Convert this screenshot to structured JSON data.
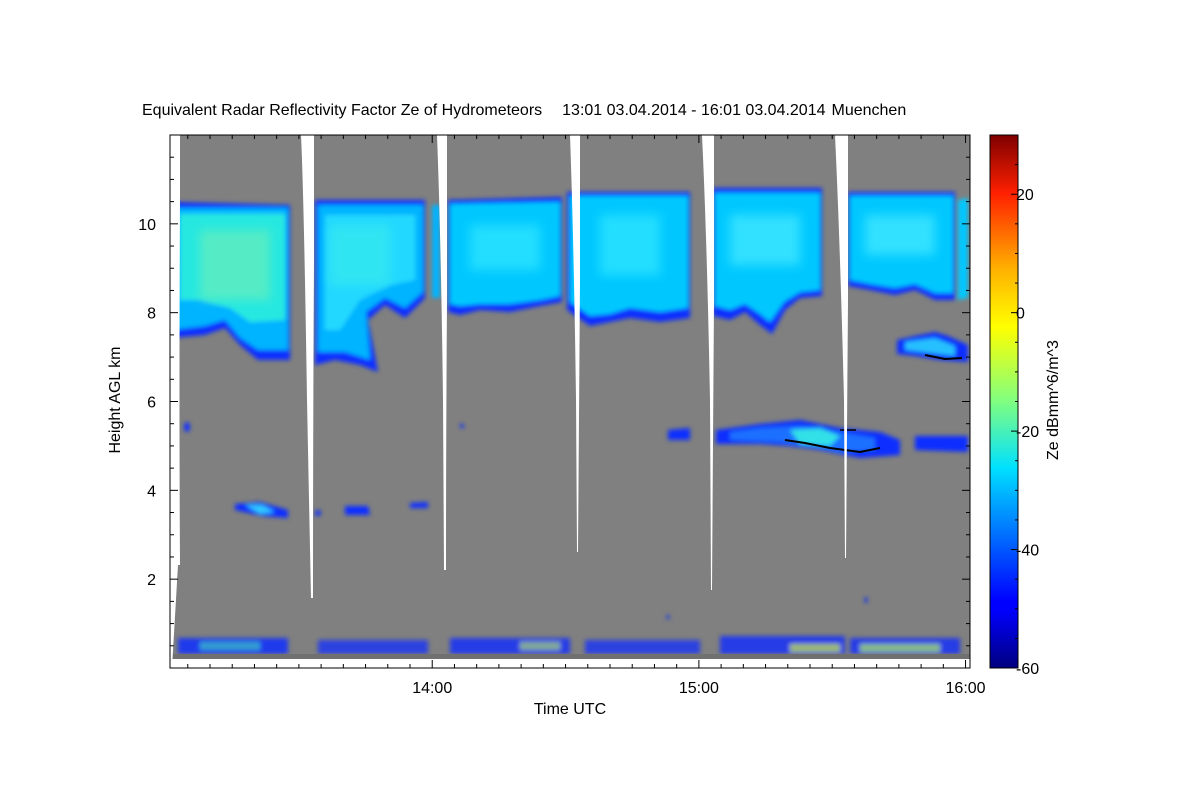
{
  "chart_data": {
    "type": "heatmap",
    "title": "Equivalent Radar Reflectivity Factor Ze of Hydrometeors",
    "time_range": "13:01 03.04.2014 - 16:01 03.04.2014",
    "location": "Muenchen",
    "xlabel": "Time UTC",
    "ylabel": "Height AGL km",
    "x_ticks": [
      "14:00",
      "15:00",
      "16:00"
    ],
    "y_ticks": [
      2,
      4,
      6,
      8,
      10
    ],
    "xlim": [
      "13:01",
      "16:01"
    ],
    "ylim": [
      0,
      12
    ],
    "colorbar": {
      "label": "Ze dBmm^6/m^3",
      "range": [
        -60,
        30
      ],
      "ticks": [
        -60,
        -40,
        -20,
        0,
        20
      ],
      "colormap": "jet"
    },
    "colors": {
      "no_signal": "#808080",
      "missing": "#ffffff"
    },
    "features": [
      {
        "name": "upper ice cloud",
        "height_km": [
          7.3,
          10.6
        ],
        "ze_dbz": [
          -40,
          -20
        ]
      },
      {
        "name": "mid-level layer",
        "height_km": [
          4.8,
          5.4
        ],
        "ze_dbz": [
          -45,
          -25
        ]
      },
      {
        "name": "thin layer",
        "height_km": [
          6.9,
          7.5
        ],
        "ze_dbz": [
          -45,
          -30
        ]
      },
      {
        "name": "low patches",
        "height_km": [
          3.3,
          3.7
        ],
        "ze_dbz": [
          -45,
          -30
        ]
      },
      {
        "name": "near-surface echoes",
        "height_km": [
          0.2,
          0.7
        ],
        "ze_dbz": [
          -40,
          -10
        ]
      }
    ]
  }
}
